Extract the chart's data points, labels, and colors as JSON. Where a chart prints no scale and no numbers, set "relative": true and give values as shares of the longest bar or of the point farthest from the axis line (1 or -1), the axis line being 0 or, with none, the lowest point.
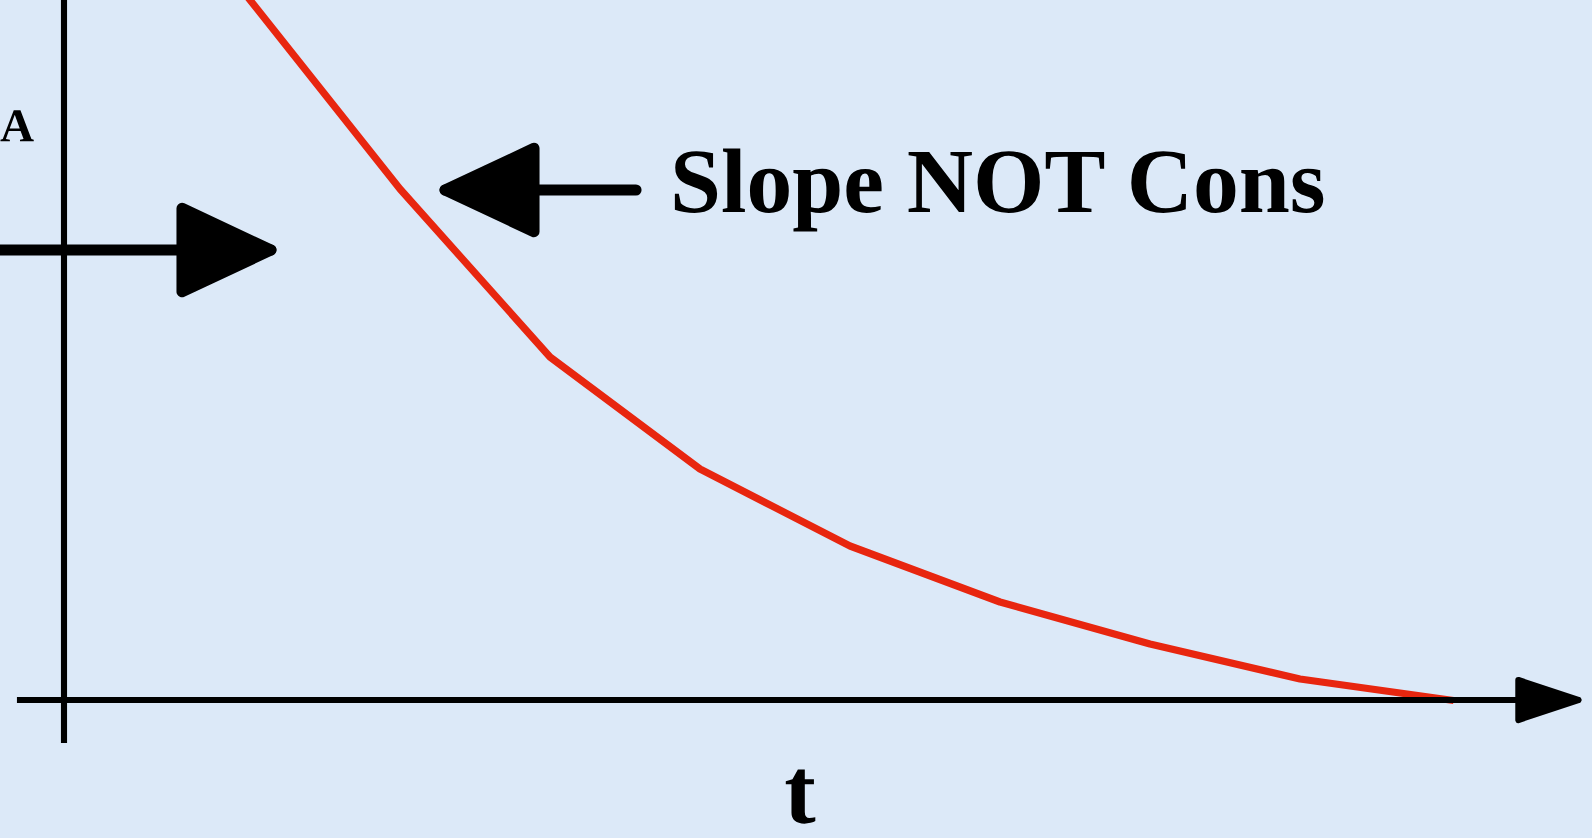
{
  "chart_data": {
    "type": "line",
    "relative": true,
    "xlabel": "t",
    "ylabel": "A",
    "annotations": [
      "Slope NOT Cons"
    ],
    "categories": [
      null,
      null,
      null,
      null,
      null,
      null,
      null,
      null,
      null
    ],
    "series": [
      {
        "color": "#e8260f",
        "values": [
          1.0,
          0.73,
          0.49,
          0.33,
          0.22,
          0.14,
          0.08,
          0.03,
          0.0
        ]
      }
    ],
    "marker": "none",
    "line_style": "solid"
  }
}
